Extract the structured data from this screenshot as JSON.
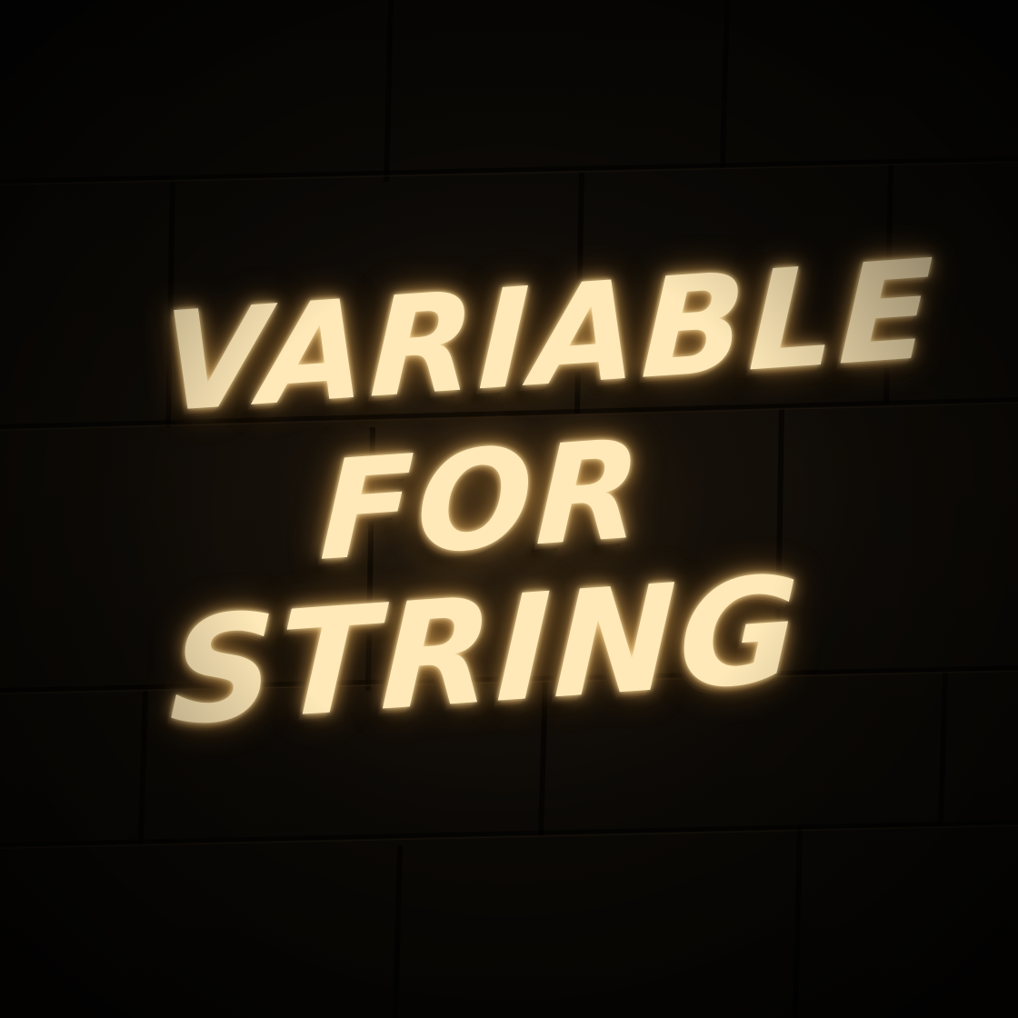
{
  "sign": {
    "lines": [
      "VARIABLE",
      "FOR",
      "STRING"
    ]
  },
  "colors": {
    "wall": "#0d0a06",
    "glow": "#ffe9b8",
    "glow_warm": "#ffc86e"
  }
}
